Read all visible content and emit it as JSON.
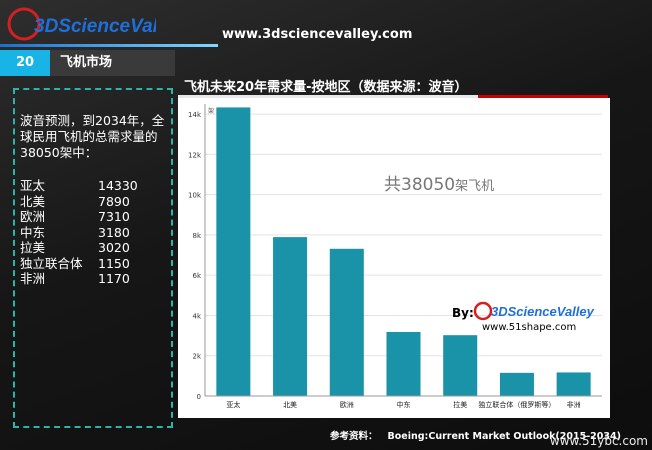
{
  "logo": {
    "text": "3DScienceValley",
    "icon": "3d-sphere-logo-icon",
    "colors": {
      "text": "#1e6fd9",
      "ring": "#d42020"
    }
  },
  "site_url": "www.3dsciencevalley.com",
  "section": {
    "number": "20",
    "title": "飞机市场"
  },
  "sidebar": {
    "intro": "波音预测，到2034年，全球民用飞机的总需求量的38050架中：",
    "regions": [
      {
        "name": "亚太",
        "value": "14330"
      },
      {
        "name": "北美",
        "value": "7890"
      },
      {
        "name": "欧洲",
        "value": "7310"
      },
      {
        "name": "中东",
        "value": "3180"
      },
      {
        "name": "拉美",
        "value": "3020"
      },
      {
        "name": "独立联合体",
        "value": "1150"
      },
      {
        "name": "非洲",
        "value": "1170"
      }
    ]
  },
  "chart_data": {
    "type": "bar",
    "title": "飞机未来20年需求量-按地区（数据来源：波音）",
    "categories": [
      "亚太",
      "北美",
      "欧洲",
      "中东",
      "拉美",
      "独立联合体（俄罗斯等）",
      "非洲"
    ],
    "values": [
      14330,
      7890,
      7310,
      3180,
      3020,
      1150,
      1170
    ],
    "ylim": [
      0,
      14500
    ],
    "yticks": [
      0,
      2000,
      4000,
      6000,
      8000,
      10000,
      12000,
      14000
    ],
    "ytick_labels": [
      "0",
      "2k",
      "4k",
      "6k",
      "8k",
      "10k",
      "12k",
      "14k"
    ],
    "y_unit": "架",
    "bar_color": "#1a93a8",
    "grid": true,
    "annotation": {
      "prefix": "共38050",
      "suffix": "架飞机"
    }
  },
  "by": {
    "label": "By:",
    "logo_text": "3DScienceValley",
    "url": "www.51shape.com"
  },
  "source": {
    "label": "参考资料：",
    "text": "Boeing:Current Market Outlook(2015-2034)"
  },
  "watermark": "www.51ybc.com"
}
